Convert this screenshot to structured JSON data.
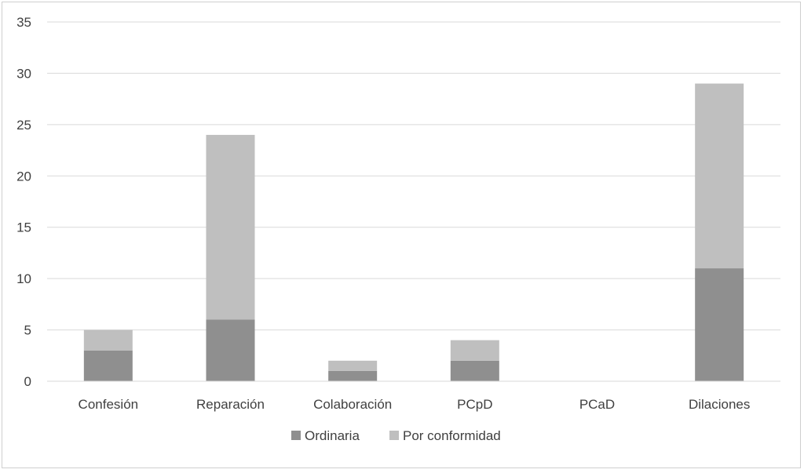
{
  "chart_data": {
    "type": "bar",
    "stacked": true,
    "categories": [
      "Confesión",
      "Reparación",
      "Colaboración",
      "PCpD",
      "PCaD",
      "Dilaciones"
    ],
    "series": [
      {
        "name": "Ordinaria",
        "values": [
          3,
          6,
          1,
          2,
          0,
          11
        ],
        "color": "#8f8f8f"
      },
      {
        "name": "Por conformidad",
        "values": [
          2,
          18,
          1,
          2,
          0,
          18
        ],
        "color": "#bfbfbf"
      }
    ],
    "title": "",
    "xlabel": "",
    "ylabel": "",
    "ylim": [
      0,
      35
    ],
    "yticks": [
      0,
      5,
      10,
      15,
      20,
      25,
      30,
      35
    ],
    "grid": true,
    "legend_position": "bottom",
    "gridline_color": "#d9d9d9"
  }
}
